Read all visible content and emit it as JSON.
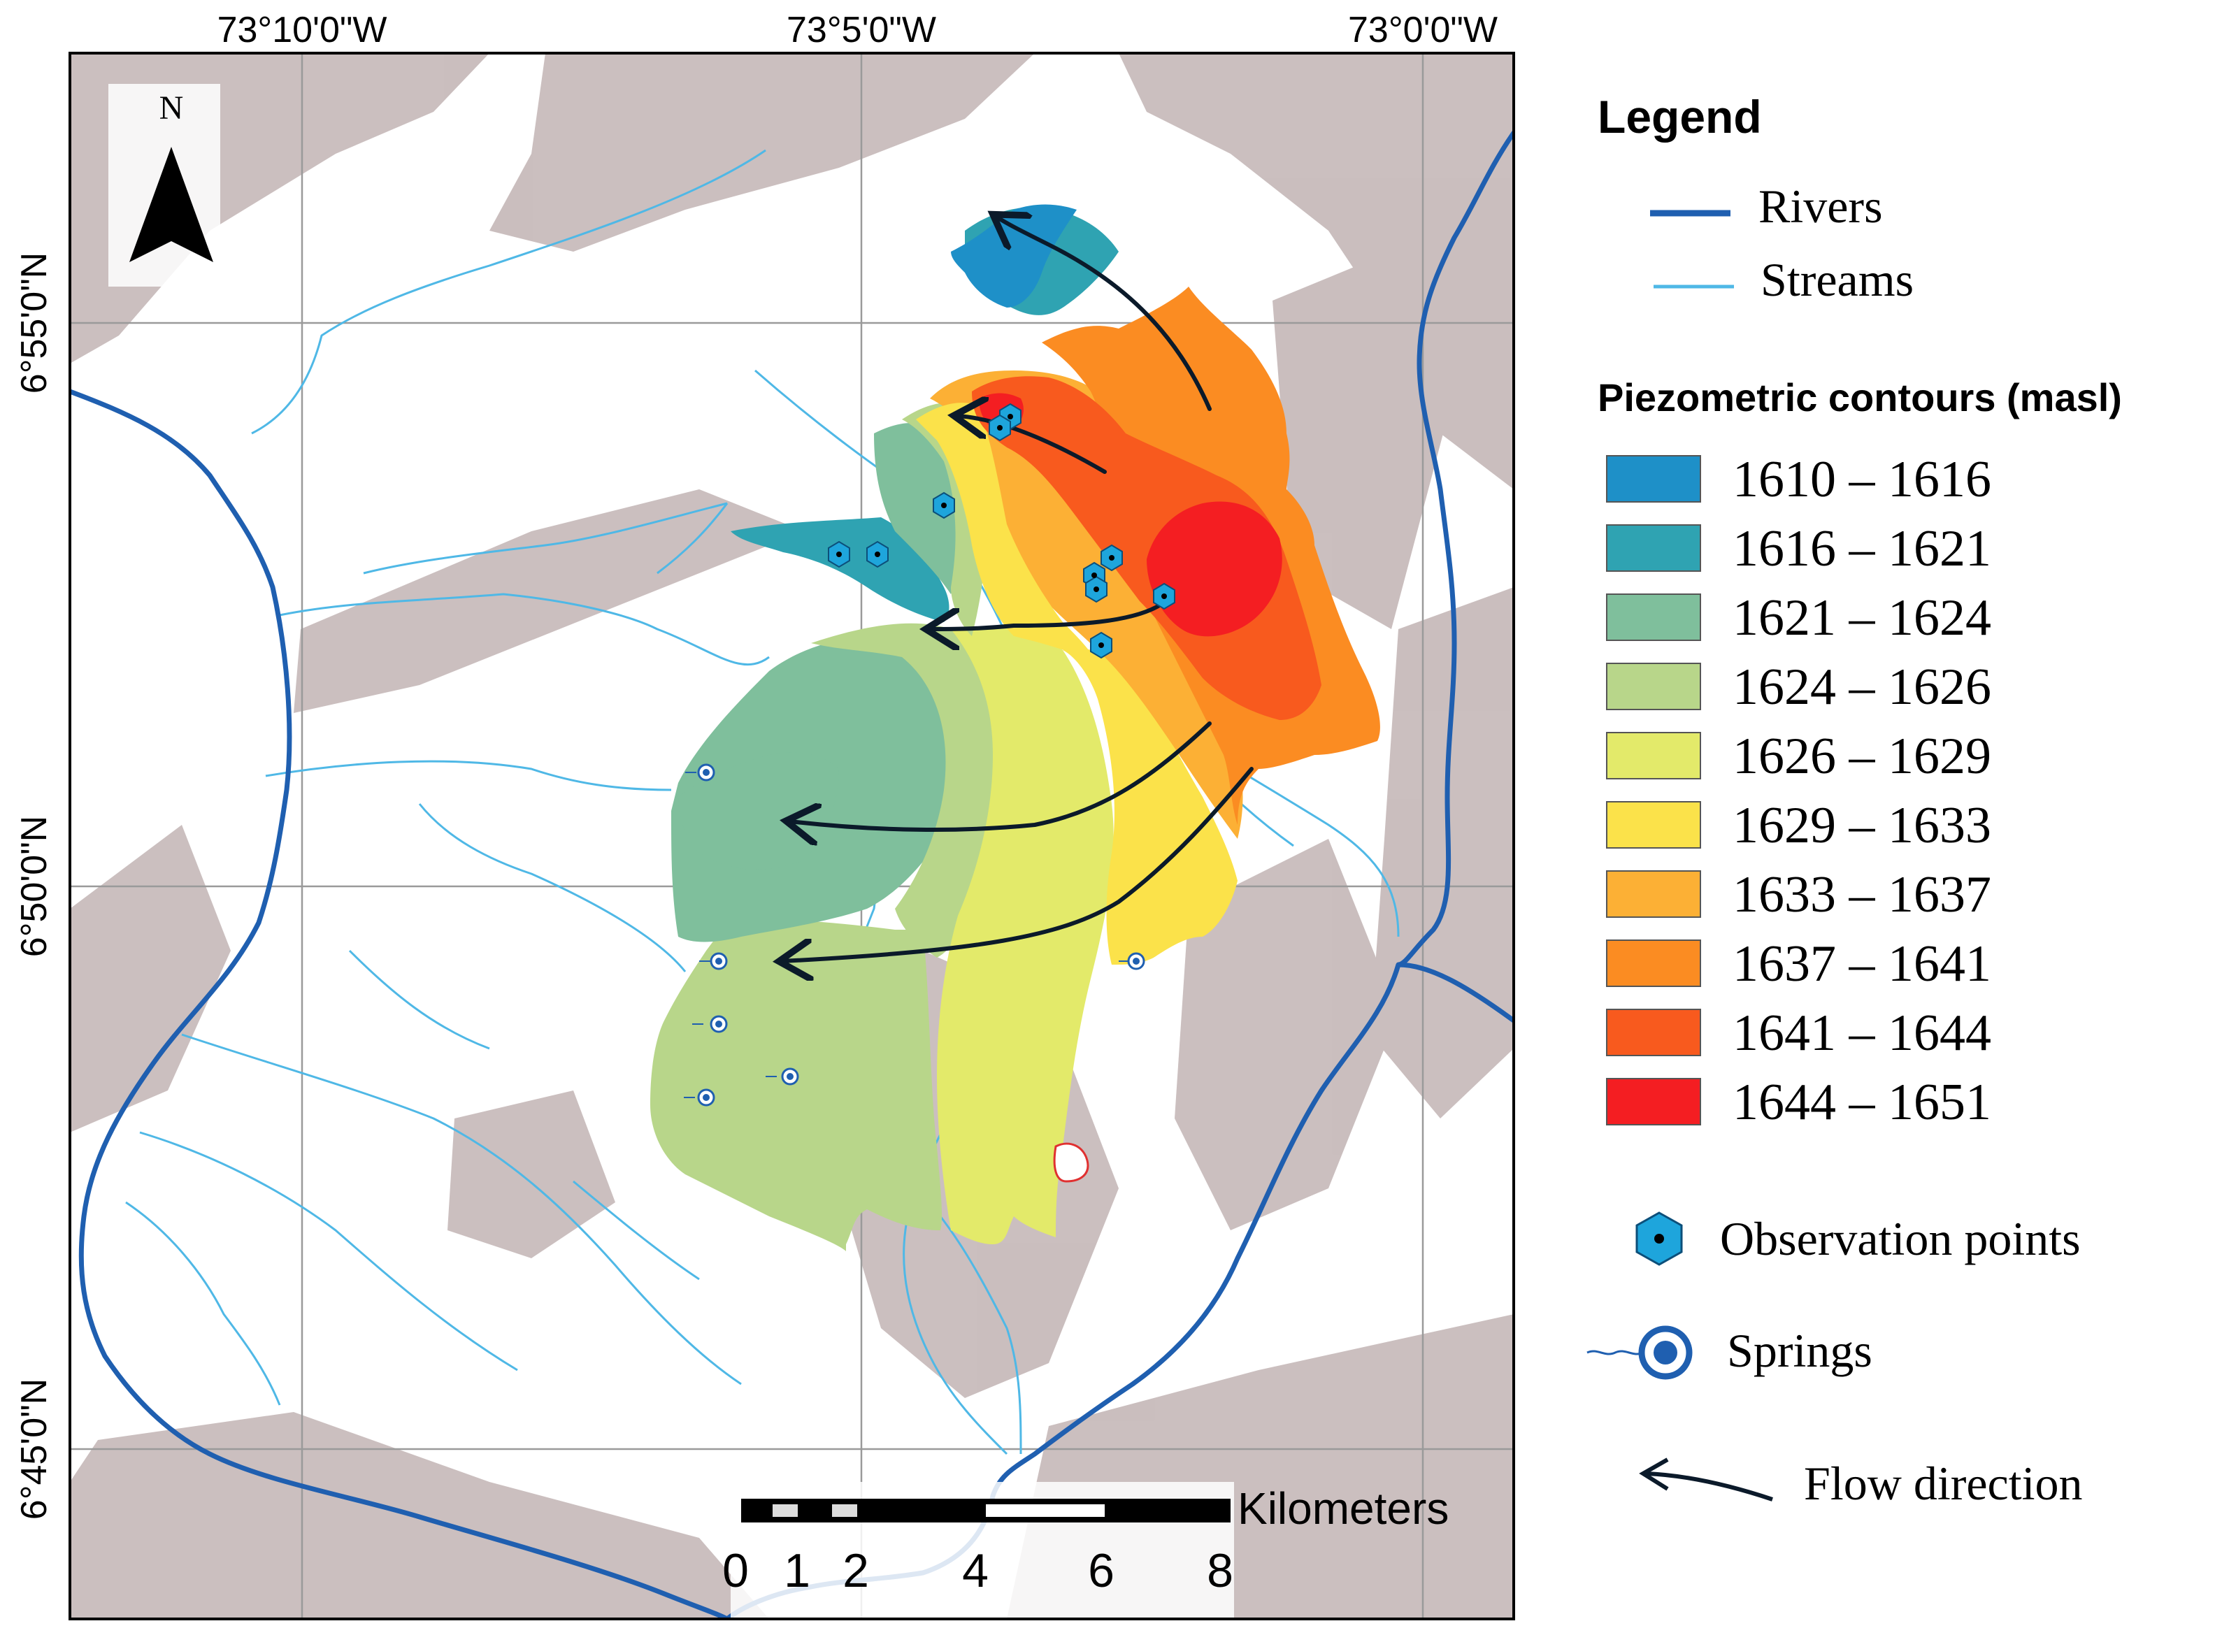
{
  "coordinates": {
    "top": [
      "73°10'0\"W",
      "73°5'0\"W",
      "73°0'0\"W"
    ],
    "left": [
      "6°55'0\"N",
      "6°50'0\"N",
      "6°45'0\"N"
    ]
  },
  "north_arrow": {
    "label": "N",
    "icon": "north-arrow-icon"
  },
  "scale_bar": {
    "unit": "Kilometers",
    "ticks": [
      "0",
      "1",
      "2",
      "4",
      "6",
      "8"
    ]
  },
  "legend": {
    "title": "Legend",
    "rivers_label": "Rivers",
    "streams_label": "Streams",
    "contours_title": "Piezometric contours (masl)",
    "contours": [
      {
        "label": "1610 – 1616",
        "color": "#1E90C8"
      },
      {
        "label": "1616 – 1621",
        "color": "#2FA3B2"
      },
      {
        "label": "1621 – 1624",
        "color": "#7FBF9C"
      },
      {
        "label": "1624 – 1626",
        "color": "#B8D68A"
      },
      {
        "label": "1626 – 1629",
        "color": "#E3EA6A"
      },
      {
        "label": "1629 – 1633",
        "color": "#FBE24A"
      },
      {
        "label": "1633 – 1637",
        "color": "#FCB035"
      },
      {
        "label": "1637 – 1641",
        "color": "#FB8C22"
      },
      {
        "label": "1641 – 1644",
        "color": "#F85A1E"
      },
      {
        "label": "1644 – 1651",
        "color": "#F41E22"
      }
    ],
    "observation_label": "Observation points",
    "springs_label": "Springs",
    "flow_label": "Flow direction"
  },
  "colors": {
    "river": "#1F5FB0",
    "stream": "#4FB8E6",
    "terrain": "#B9A9A9",
    "frame": "#000000"
  }
}
